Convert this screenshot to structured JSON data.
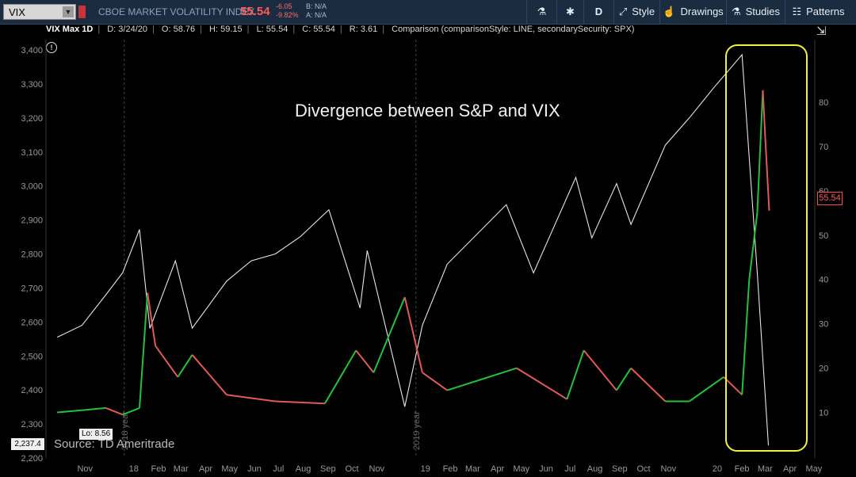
{
  "toolbar": {
    "symbol": "VIX",
    "description": "CBOE MARKET VOLATILITY INDEX",
    "last": "55.54",
    "change": "-6.05",
    "change_pct": "-9.82%",
    "bid": "B: N/A",
    "ask": "A: N/A",
    "period": "D",
    "style_label": "Style",
    "drawings_label": "Drawings",
    "studies_label": "Studies",
    "patterns_label": "Patterns"
  },
  "infobar": {
    "title": "VIX Max 1D",
    "date": "D: 3/24/20",
    "open": "O: 58.76",
    "high": "H: 59.15",
    "low": "L: 55.54",
    "close": "C: 55.54",
    "range": "R: 3.61",
    "comparison": "Comparison (comparisonStyle: LINE, secondarySecurity: SPX)"
  },
  "tags": {
    "last_price": "55.54",
    "spx_low": "2,237.4",
    "vix_low": "Lo: 8.56"
  },
  "annotation": "Divergence between S&P and VIX",
  "source": "Source: TD Ameritrade",
  "colors": {
    "up": "#22c23a",
    "down": "#e05a5a",
    "spx": "#e6e6e6",
    "highlight": "#f2f23a"
  },
  "chart_data": {
    "type": "line",
    "title": "",
    "left_axis": {
      "label": "SPX",
      "ticks": [
        "3,400",
        "3,300",
        "3,200",
        "3,100",
        "3,000",
        "2,900",
        "2,800",
        "2,700",
        "2,600",
        "2,500",
        "2,400",
        "2,300",
        "2,200"
      ],
      "ylim": [
        2200,
        3400
      ]
    },
    "right_axis": {
      "label": "VIX",
      "ticks": [
        "80",
        "70",
        "60",
        "50",
        "40",
        "30",
        "20",
        "10"
      ],
      "ylim": [
        3.3,
        88.5
      ]
    },
    "x_ticks": [
      "Nov",
      "18",
      "Feb",
      "Mar",
      "Apr",
      "May",
      "Jun",
      "Jul",
      "Aug",
      "Sep",
      "Oct",
      "Nov",
      "19",
      "Feb",
      "Mar",
      "Apr",
      "May",
      "Jun",
      "Jul",
      "Aug",
      "Sep",
      "Oct",
      "Nov",
      "20",
      "Feb",
      "Mar",
      "Apr",
      "May"
    ],
    "year_markers": [
      "2018 year",
      "2019 year"
    ],
    "series": [
      {
        "name": "SPX",
        "x": [
          "2017-10-15",
          "2017-11-15",
          "2017-12-15",
          "2018-01-05",
          "2018-01-26",
          "2018-02-08",
          "2018-03-12",
          "2018-04-02",
          "2018-05-15",
          "2018-06-15",
          "2018-07-15",
          "2018-08-15",
          "2018-09-20",
          "2018-10-29",
          "2018-11-07",
          "2018-12-24",
          "2019-01-15",
          "2019-02-15",
          "2019-04-30",
          "2019-06-03",
          "2019-07-26",
          "2019-08-15",
          "2019-09-15",
          "2019-10-03",
          "2019-11-15",
          "2019-12-15",
          "2020-01-15",
          "2020-02-19",
          "2020-03-09",
          "2020-03-23"
        ],
        "values": [
          2555,
          2590,
          2680,
          2745,
          2872,
          2581,
          2780,
          2582,
          2720,
          2780,
          2800,
          2850,
          2930,
          2641,
          2810,
          2351,
          2590,
          2770,
          2945,
          2744,
          3025,
          2847,
          3007,
          2887,
          3120,
          3200,
          3290,
          3386,
          2746,
          2237
        ]
      },
      {
        "name": "VIX",
        "x": [
          "2017-10-15",
          "2017-11-15",
          "2017-12-15",
          "2018-01-05",
          "2018-01-26",
          "2018-02-05",
          "2018-02-15",
          "2018-03-15",
          "2018-04-02",
          "2018-05-15",
          "2018-07-15",
          "2018-09-15",
          "2018-10-24",
          "2018-11-15",
          "2018-12-24",
          "2019-01-15",
          "2019-02-15",
          "2019-05-13",
          "2019-07-15",
          "2019-08-05",
          "2019-09-15",
          "2019-10-03",
          "2019-11-15",
          "2019-12-15",
          "2020-01-27",
          "2020-02-19",
          "2020-02-28",
          "2020-03-09",
          "2020-03-16",
          "2020-03-19",
          "2020-03-24"
        ],
        "values": [
          10,
          10.5,
          11,
          9.5,
          11,
          37,
          25,
          18,
          23,
          14,
          12.5,
          12,
          24,
          19,
          36,
          19,
          15,
          20,
          13,
          24,
          15,
          20,
          12.5,
          12.5,
          18,
          14,
          40,
          55,
          82.7,
          72,
          55.54
        ]
      }
    ],
    "annotations": [
      "Divergence between S&P and VIX"
    ]
  }
}
